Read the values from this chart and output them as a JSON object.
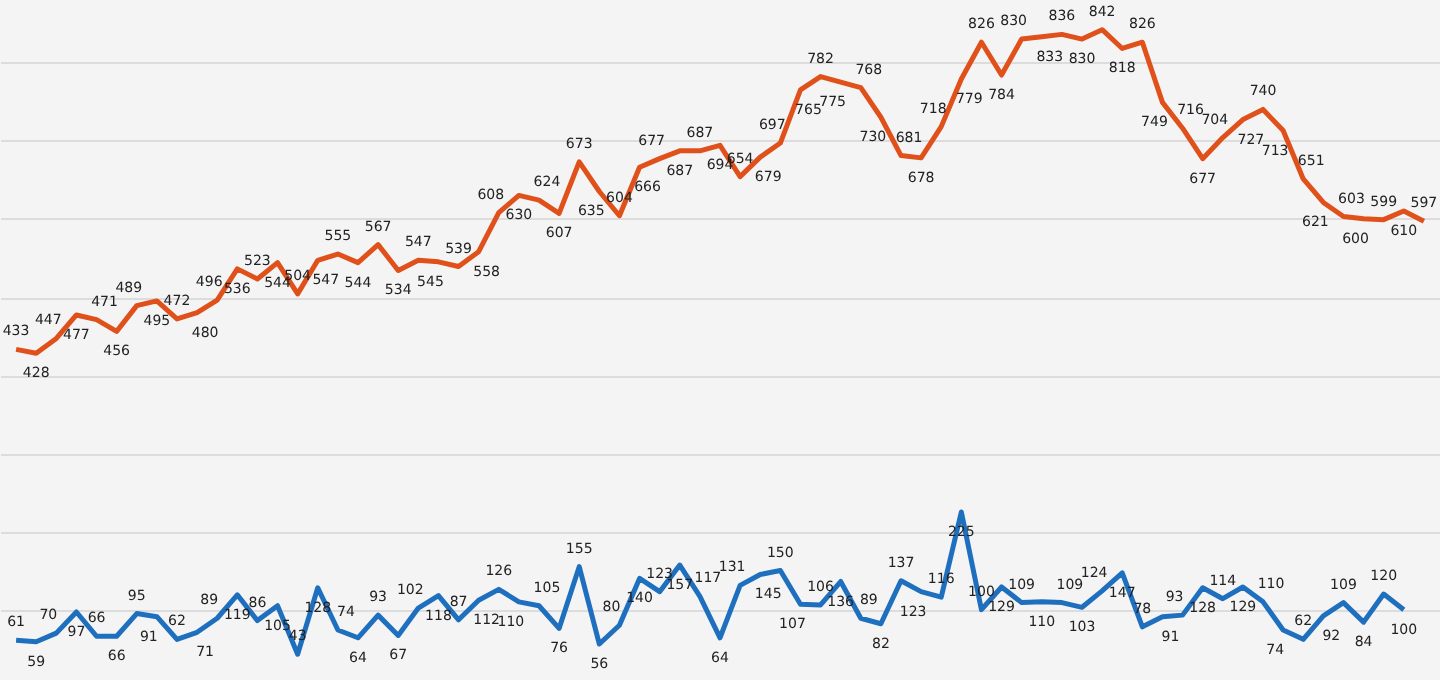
{
  "chart_data": {
    "type": "line",
    "categories": [
      null,
      null,
      null,
      null,
      null,
      null,
      null,
      null,
      null,
      null,
      null,
      null,
      null,
      null,
      null,
      null,
      null,
      null,
      null,
      null,
      null,
      null,
      null,
      null,
      null,
      null,
      null,
      null,
      null,
      null,
      null,
      null,
      null,
      null,
      null,
      null,
      null,
      null,
      null,
      null,
      null,
      null,
      null,
      null,
      null,
      null,
      null,
      null,
      null,
      null,
      null,
      null,
      null,
      null,
      null,
      null,
      null,
      null,
      null,
      null,
      null,
      null,
      null,
      null,
      null,
      null,
      null,
      null,
      null,
      null,
      null
    ],
    "series": [
      {
        "color": "#e0501a",
        "values": [
          433,
          428,
          447,
          477,
          471,
          456,
          489,
          495,
          472,
          480,
          496,
          536,
          523,
          544,
          504,
          547,
          555,
          544,
          567,
          534,
          547,
          545,
          539,
          558,
          608,
          630,
          624,
          607,
          673,
          635,
          604,
          666,
          677,
          687,
          687,
          694,
          654,
          679,
          697,
          765,
          782,
          775,
          768,
          730,
          681,
          678,
          718,
          779,
          826,
          784,
          830,
          833,
          836,
          830,
          842,
          818,
          826,
          749,
          716,
          677,
          704,
          727,
          740,
          713,
          651,
          621,
          603,
          600,
          599,
          610,
          597
        ]
      },
      {
        "color": "#1f6fbf",
        "values": [
          61,
          59,
          70,
          97,
          66,
          66,
          95,
          91,
          62,
          71,
          89,
          119,
          86,
          105,
          43,
          128,
          74,
          64,
          93,
          67,
          102,
          118,
          87,
          112,
          126,
          110,
          105,
          76,
          155,
          56,
          80,
          140,
          123,
          157,
          117,
          64,
          131,
          145,
          150,
          107,
          106,
          136,
          89,
          82,
          137,
          123,
          116,
          225,
          100,
          129,
          109,
          110,
          109,
          103,
          124,
          147,
          78,
          91,
          93,
          128,
          114,
          129,
          110,
          74,
          62,
          92,
          109,
          84,
          120,
          100,
          null
        ]
      }
    ],
    "ylim": [
      10,
      880
    ],
    "yticks": [
      {
        "value": 100,
        "label": null
      },
      {
        "value": 200,
        "label": null
      },
      {
        "value": 300,
        "label": null
      },
      {
        "value": 400,
        "label": null
      },
      {
        "value": 500,
        "label": null
      },
      {
        "value": 600,
        "label": null
      },
      {
        "value": 700,
        "label": null
      },
      {
        "value": 800,
        "label": null
      }
    ],
    "grid": "y",
    "data_labels": true,
    "marker": "none",
    "line_style": "solid"
  }
}
